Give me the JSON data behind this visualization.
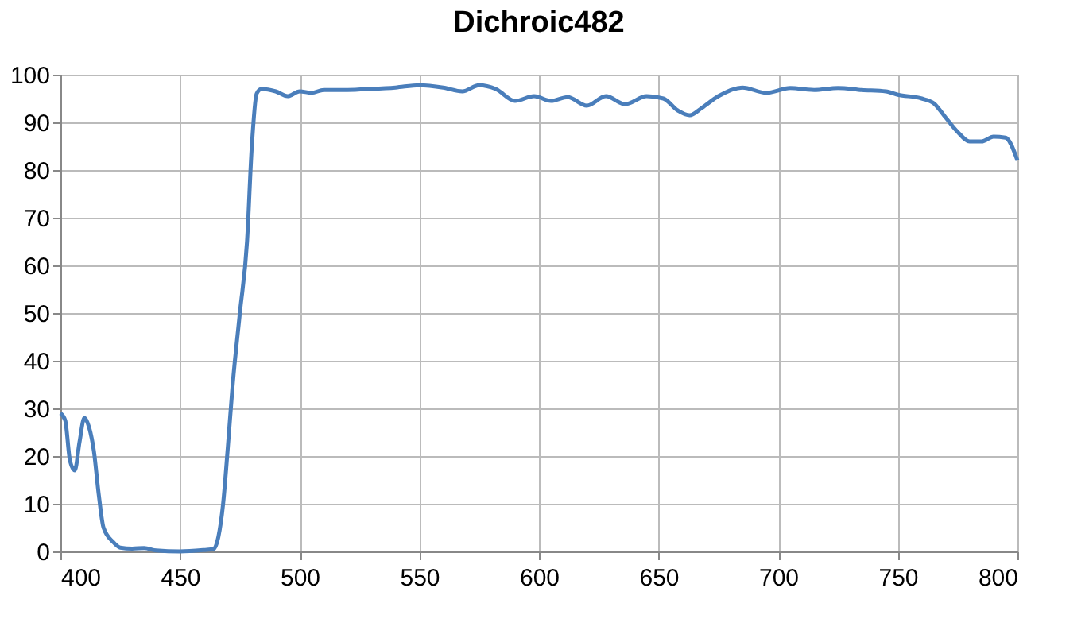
{
  "chart_data": {
    "type": "line",
    "title": "Dichroic482",
    "x": [
      400,
      402,
      404,
      406,
      408,
      410,
      412,
      414,
      416,
      418,
      422,
      425,
      430,
      435,
      440,
      450,
      460,
      464,
      466,
      468,
      470,
      472,
      475,
      478,
      480,
      482,
      484,
      490,
      495,
      500,
      505,
      510,
      520,
      530,
      540,
      550,
      560,
      568,
      575,
      582,
      590,
      598,
      605,
      612,
      620,
      628,
      636,
      645,
      652,
      658,
      663,
      668,
      675,
      685,
      695,
      705,
      715,
      725,
      735,
      745,
      750,
      760,
      765,
      770,
      775,
      780,
      785,
      790,
      795,
      800
    ],
    "series": [
      {
        "color": "#4a7ebb",
        "values": [
          29,
          27.5,
          19,
          17,
          23,
          28,
          26,
          21,
          12,
          5,
          2,
          0.8,
          0.6,
          0.7,
          0.2,
          0,
          0.3,
          0.5,
          3,
          10,
          22,
          35,
          50,
          65,
          85,
          96,
          97,
          96.5,
          95.5,
          96.5,
          96.2,
          96.8,
          96.8,
          97,
          97.3,
          97.8,
          97.3,
          96.5,
          97.8,
          97,
          94.5,
          95.5,
          94.5,
          95.3,
          93.5,
          95.5,
          93.8,
          95.5,
          95,
          92.5,
          91.5,
          93,
          95.5,
          97.3,
          96.2,
          97.2,
          96.8,
          97.2,
          96.8,
          96.5,
          95.8,
          95,
          94,
          91,
          88,
          86,
          86,
          87,
          86.8,
          82
        ]
      }
    ],
    "xlim": [
      400,
      800
    ],
    "xticks": [
      400,
      450,
      500,
      550,
      600,
      650,
      700,
      750,
      800
    ],
    "ylim": [
      0,
      100
    ],
    "yticks": [
      0,
      10,
      20,
      30,
      40,
      50,
      60,
      70,
      80,
      90,
      100
    ],
    "grid": true
  }
}
